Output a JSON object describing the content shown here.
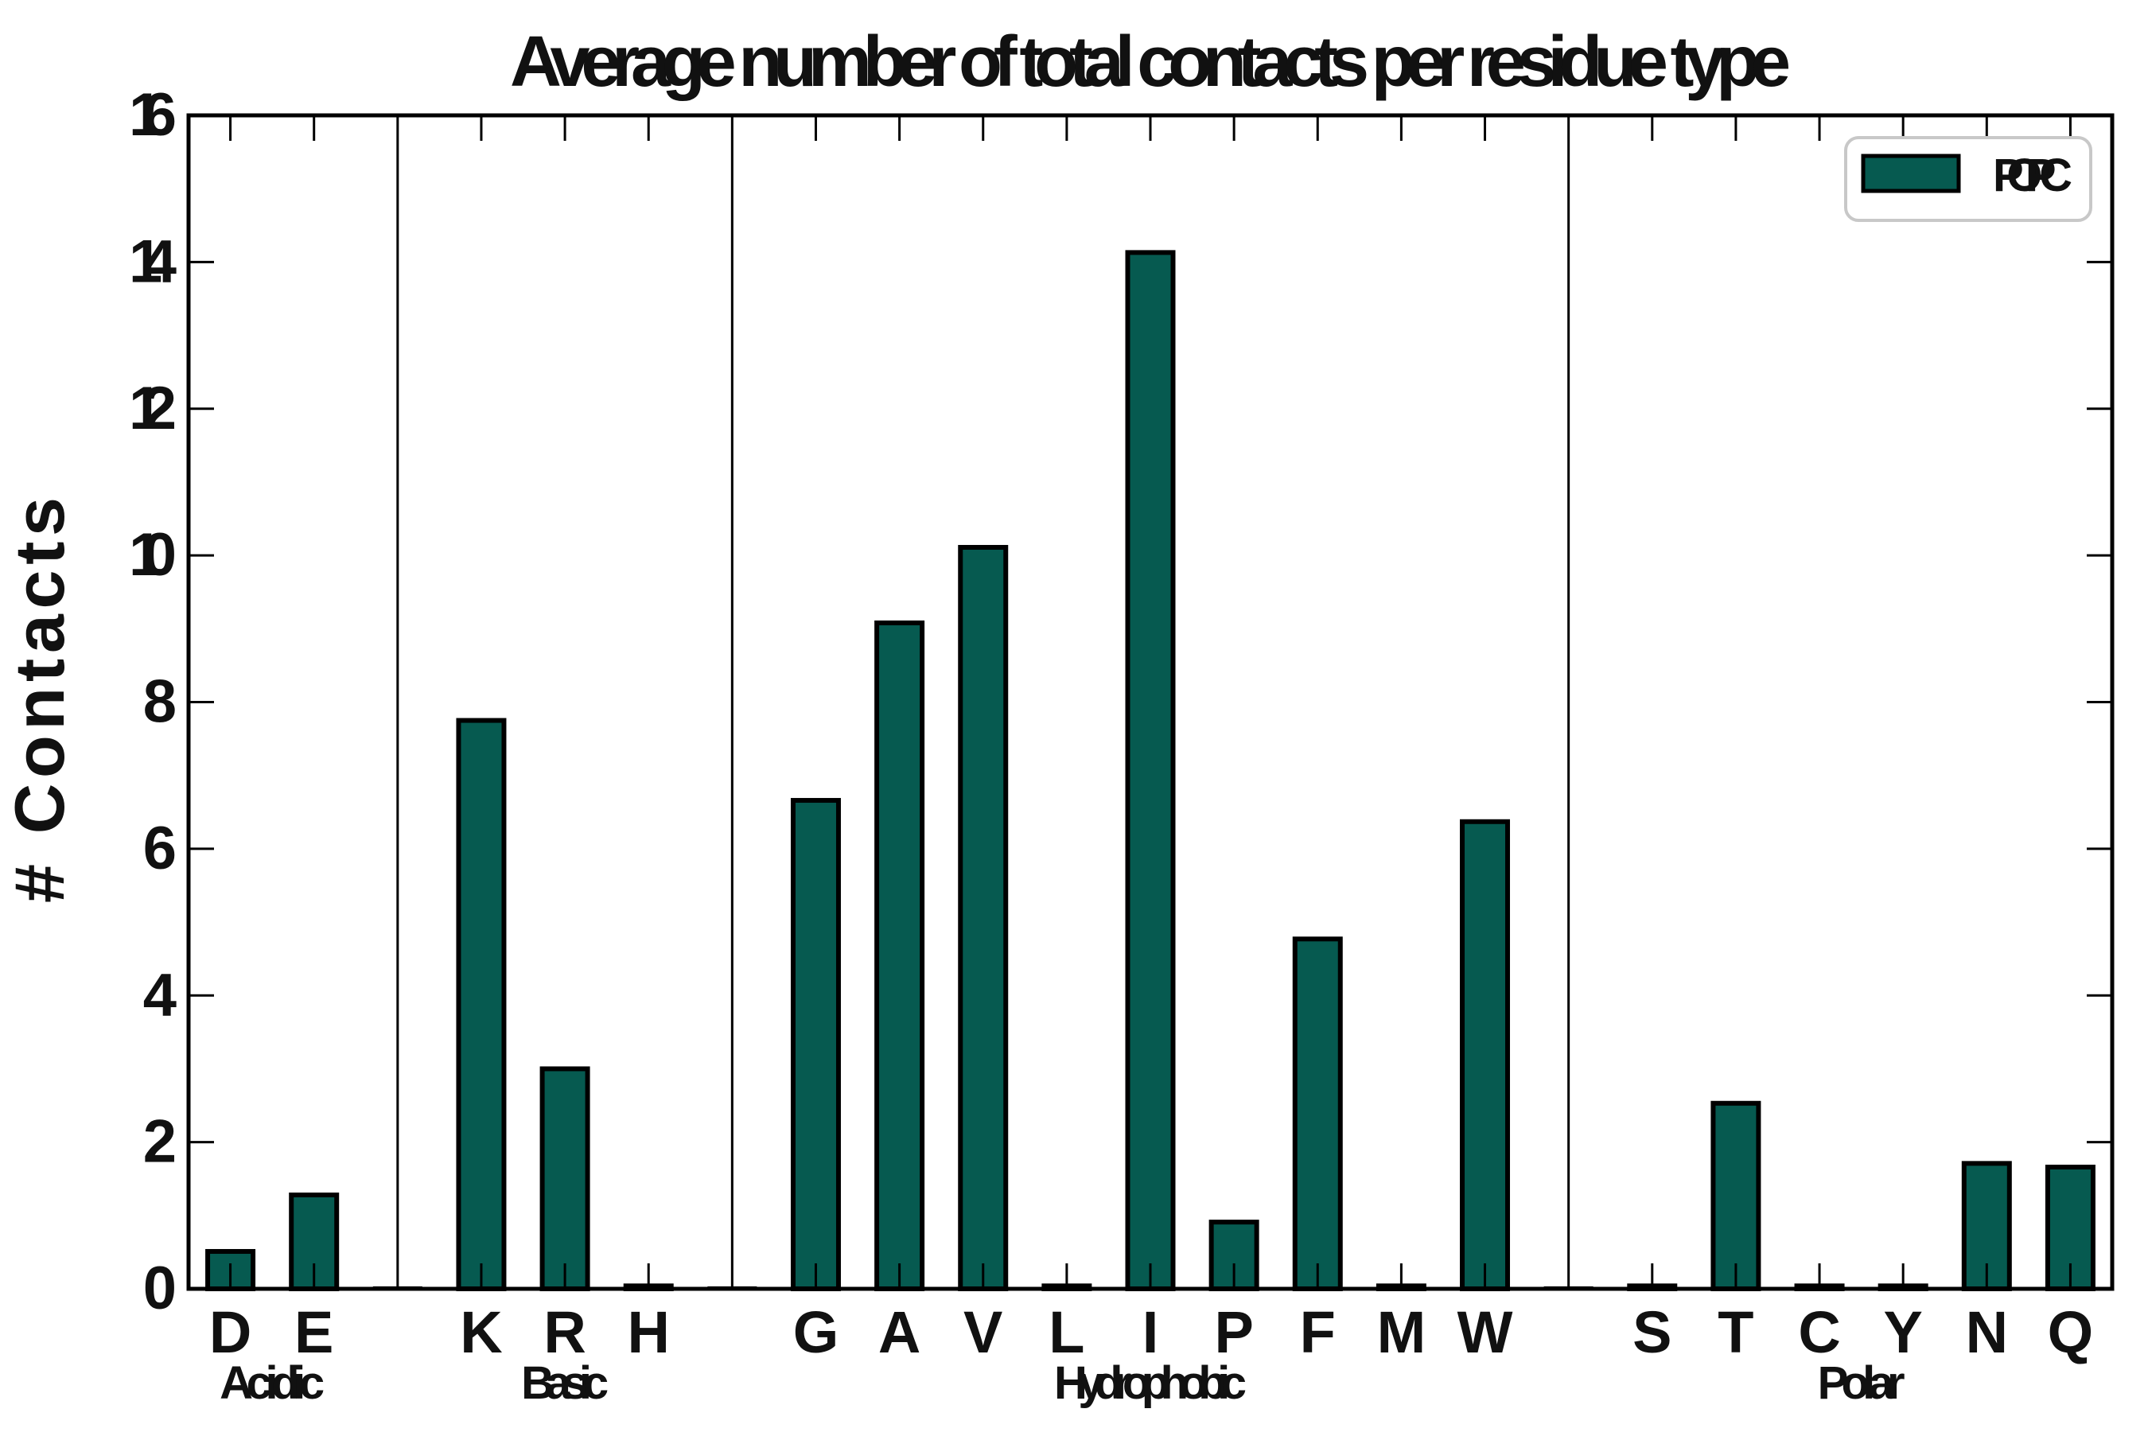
{
  "title": "Average number of total contacts per residue type",
  "axes": {
    "ylabel": "# Contacts",
    "ymin": 0,
    "ymax": 16,
    "ytick_step": 2,
    "ytick_labels": [
      "0",
      "2",
      "4",
      "6",
      "8",
      "10",
      "12",
      "14",
      "16"
    ]
  },
  "legend": {
    "label": "POPC",
    "swatch_color": "#065a50",
    "swatch_edge_color": "#000000",
    "box_border_color": "#c8c8c8"
  },
  "colors": {
    "bar_fill": "#065a50",
    "bar_edge": "#000000",
    "axis": "#000000",
    "background": "#ffffff"
  },
  "chart_data": {
    "type": "bar",
    "title": "Average number of total contacts per residue type",
    "xlabel": "",
    "ylabel": "# Contacts",
    "ylim": [
      0,
      16
    ],
    "grid": false,
    "legend_position": "upper right",
    "series_name": "POPC",
    "groups": [
      {
        "name": "Acidic",
        "categories": [
          "D",
          "E"
        ],
        "values": [
          0.51,
          1.28
        ]
      },
      {
        "name": "Basic",
        "categories": [
          "K",
          "R",
          "H"
        ],
        "values": [
          7.75,
          3.0,
          0.04
        ]
      },
      {
        "name": "Hydrophobic",
        "categories": [
          "G",
          "A",
          "V",
          "L",
          "I",
          "P",
          "F",
          "M",
          "W"
        ],
        "values": [
          6.66,
          9.08,
          10.11,
          0.04,
          14.13,
          0.91,
          4.77,
          0.04,
          6.37
        ]
      },
      {
        "name": "Polar",
        "categories": [
          "S",
          "T",
          "C",
          "Y",
          "N",
          "Q"
        ],
        "values": [
          0.04,
          2.53,
          0.04,
          0.04,
          1.71,
          1.66
        ]
      }
    ]
  }
}
